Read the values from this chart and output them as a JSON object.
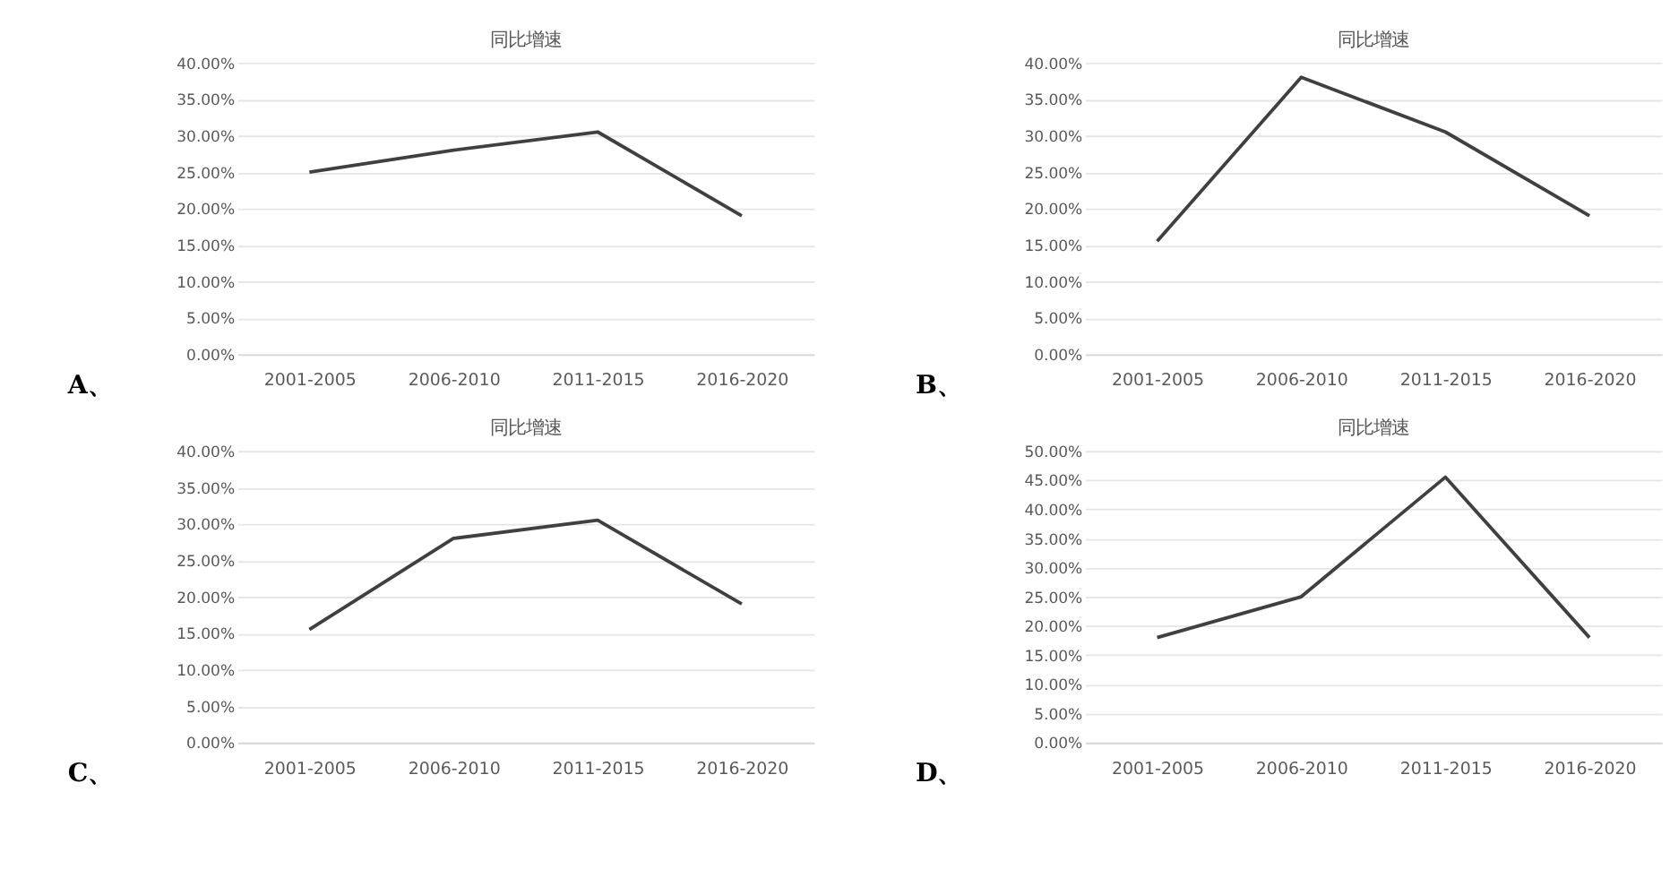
{
  "chart_data": [
    {
      "type": "line",
      "title": "同比增速",
      "categories": [
        "2001-2005",
        "2006-2010",
        "2011-2015",
        "2016-2020"
      ],
      "series": [
        {
          "color": "#404040",
          "values": [
            25,
            28,
            30.5,
            19
          ]
        }
      ],
      "ylim": [
        0,
        40
      ],
      "yticks": [
        {
          "value": 0,
          "label": "0.00%"
        },
        {
          "value": 5,
          "label": "5.00%"
        },
        {
          "value": 10,
          "label": "10.00%"
        },
        {
          "value": 15,
          "label": "15.00%"
        },
        {
          "value": 20,
          "label": "20.00%"
        },
        {
          "value": 25,
          "label": "25.00%"
        },
        {
          "value": 30,
          "label": "30.00%"
        },
        {
          "value": 35,
          "label": "35.00%"
        },
        {
          "value": 40,
          "label": "40.00%"
        }
      ],
      "grid": "y",
      "annotations": [
        "A、"
      ]
    },
    {
      "type": "line",
      "title": "同比增速",
      "categories": [
        "2001-2005",
        "2006-2010",
        "2011-2015",
        "2016-2020"
      ],
      "series": [
        {
          "color": "#404040",
          "values": [
            15.5,
            38,
            30.5,
            19
          ]
        }
      ],
      "ylim": [
        0,
        40
      ],
      "yticks": [
        {
          "value": 0,
          "label": "0.00%"
        },
        {
          "value": 5,
          "label": "5.00%"
        },
        {
          "value": 10,
          "label": "10.00%"
        },
        {
          "value": 15,
          "label": "15.00%"
        },
        {
          "value": 20,
          "label": "20.00%"
        },
        {
          "value": 25,
          "label": "25.00%"
        },
        {
          "value": 30,
          "label": "30.00%"
        },
        {
          "value": 35,
          "label": "35.00%"
        },
        {
          "value": 40,
          "label": "40.00%"
        }
      ],
      "grid": "y",
      "annotations": [
        "B、"
      ]
    },
    {
      "type": "line",
      "title": "同比增速",
      "categories": [
        "2001-2005",
        "2006-2010",
        "2011-2015",
        "2016-2020"
      ],
      "series": [
        {
          "color": "#404040",
          "values": [
            15.5,
            28,
            30.5,
            19
          ]
        }
      ],
      "ylim": [
        0,
        40
      ],
      "yticks": [
        {
          "value": 0,
          "label": "0.00%"
        },
        {
          "value": 5,
          "label": "5.00%"
        },
        {
          "value": 10,
          "label": "10.00%"
        },
        {
          "value": 15,
          "label": "15.00%"
        },
        {
          "value": 20,
          "label": "20.00%"
        },
        {
          "value": 25,
          "label": "25.00%"
        },
        {
          "value": 30,
          "label": "30.00%"
        },
        {
          "value": 35,
          "label": "35.00%"
        },
        {
          "value": 40,
          "label": "40.00%"
        }
      ],
      "grid": "y",
      "annotations": [
        "C、"
      ]
    },
    {
      "type": "line",
      "title": "同比增速",
      "categories": [
        "2001-2005",
        "2006-2010",
        "2011-2015",
        "2016-2020"
      ],
      "series": [
        {
          "color": "#404040",
          "values": [
            18,
            25,
            45.5,
            18
          ]
        }
      ],
      "ylim": [
        0,
        50
      ],
      "yticks": [
        {
          "value": 0,
          "label": "0.00%"
        },
        {
          "value": 5,
          "label": "5.00%"
        },
        {
          "value": 10,
          "label": "10.00%"
        },
        {
          "value": 15,
          "label": "15.00%"
        },
        {
          "value": 20,
          "label": "20.00%"
        },
        {
          "value": 25,
          "label": "25.00%"
        },
        {
          "value": 30,
          "label": "30.00%"
        },
        {
          "value": 35,
          "label": "35.00%"
        },
        {
          "value": 40,
          "label": "40.00%"
        },
        {
          "value": 45,
          "label": "45.00%"
        },
        {
          "value": 50,
          "label": "50.00%"
        }
      ],
      "grid": "y",
      "annotations": [
        "D、"
      ]
    }
  ]
}
